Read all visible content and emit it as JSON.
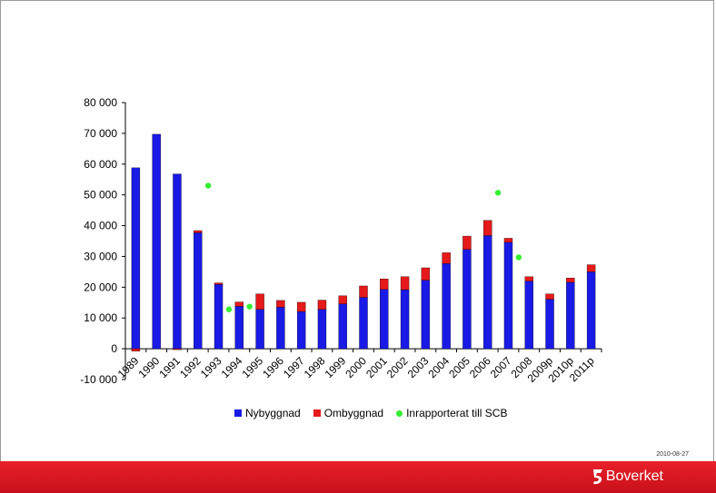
{
  "chart_data": {
    "type": "bar",
    "stacked": true,
    "categories": [
      "1989",
      "1990",
      "1991",
      "1992",
      "1993",
      "1994",
      "1995",
      "1996",
      "1997",
      "1998",
      "1999",
      "2000",
      "2001",
      "2002",
      "2003",
      "2004",
      "2005",
      "2006",
      "2007",
      "2008",
      "2009p",
      "2010p",
      "2011p"
    ],
    "series": [
      {
        "name": "Nybyggnad",
        "color": "#1a1ae6",
        "values": [
          58800,
          69700,
          56800,
          37700,
          20900,
          13800,
          12800,
          13500,
          12100,
          12800,
          14600,
          16700,
          19300,
          19200,
          22300,
          27700,
          32300,
          36800,
          34600,
          22000,
          16100,
          21600,
          25000
        ]
      },
      {
        "name": "Ombyggnad",
        "color": "#e61a1a",
        "values": [
          -800,
          0,
          -300,
          700,
          500,
          1400,
          5000,
          2200,
          3000,
          3000,
          2600,
          3700,
          3400,
          4200,
          4000,
          3500,
          4300,
          4900,
          1300,
          1400,
          1700,
          1400,
          2300
        ]
      }
    ],
    "scatter": {
      "name": "Inrapporterat till SCB",
      "color": "#33ee33",
      "points": [
        {
          "x": "1992",
          "y": 53000
        },
        {
          "x": "1993",
          "y": 12800
        },
        {
          "x": "1994",
          "y": 13700
        },
        {
          "x": "2006",
          "y": 50700
        },
        {
          "x": "2007",
          "y": 29700
        }
      ]
    },
    "ylim": [
      -10000,
      80000
    ],
    "yticks": [
      -10000,
      0,
      10000,
      20000,
      30000,
      40000,
      50000,
      60000,
      70000,
      80000
    ],
    "ytick_labels": [
      "-10 000",
      "0",
      "10 000",
      "20 000",
      "30 000",
      "40 000",
      "50 000",
      "60 000",
      "70 000",
      "80 000"
    ],
    "legend_position": "bottom",
    "grid": false
  },
  "legend": {
    "nybyggnad": "Nybyggnad",
    "ombyggnad": "Ombyggnad",
    "scb": "Inrapporterat till SCB"
  },
  "footer": {
    "date": "2010-08-27",
    "brand": "Boverket"
  }
}
